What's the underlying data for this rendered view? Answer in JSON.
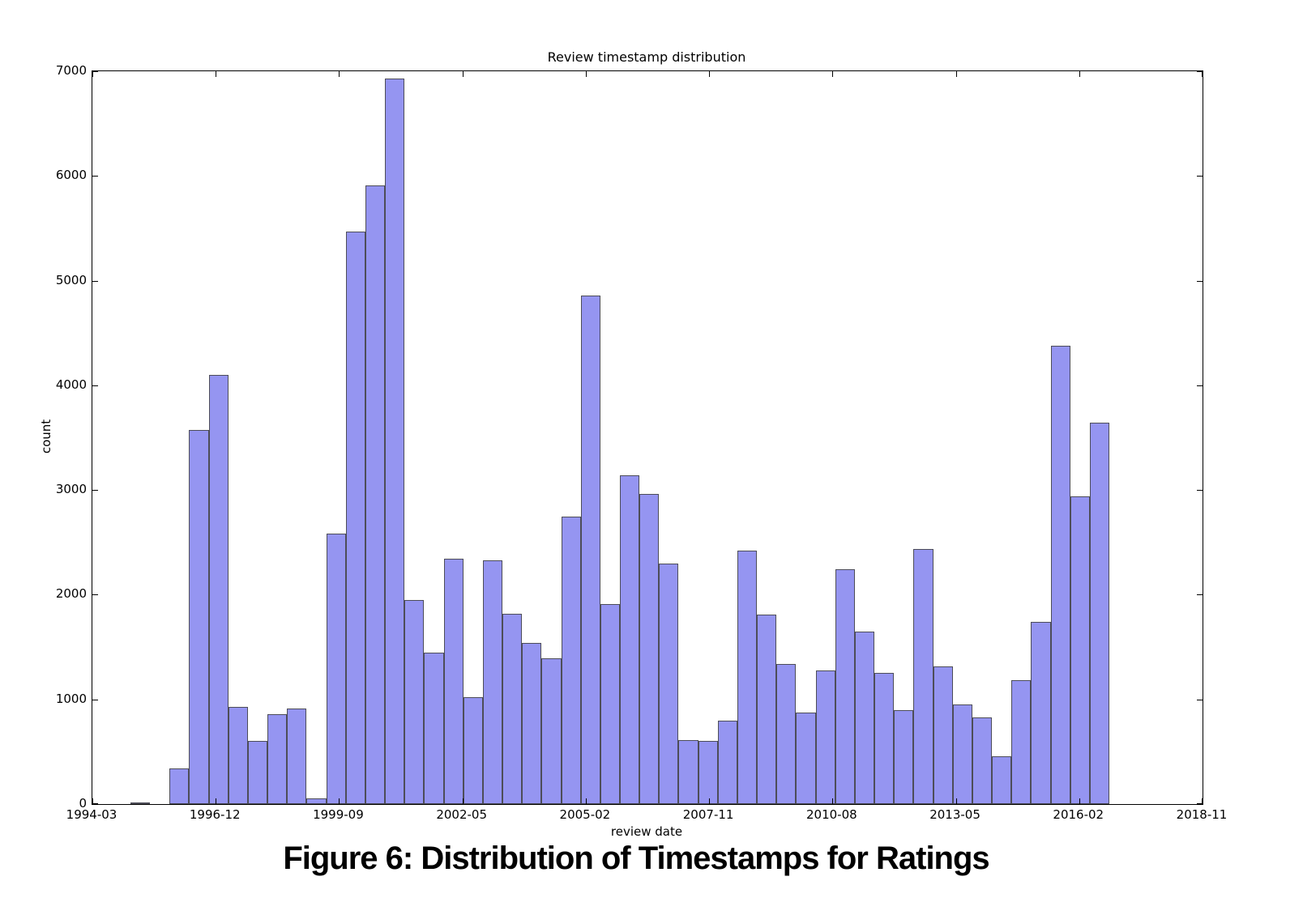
{
  "figure": {
    "caption": "Figure 6: Distribution of Timestamps for Ratings"
  },
  "chart_data": {
    "type": "bar",
    "subtype": "histogram",
    "title": "Review timestamp distribution",
    "xlabel": "review date",
    "ylabel": "count",
    "x_tick_labels": [
      "1994-03",
      "1996-12",
      "1999-09",
      "2002-05",
      "2005-02",
      "2007-11",
      "2010-08",
      "2013-05",
      "2016-02",
      "2018-11"
    ],
    "y_ticks": [
      0,
      1000,
      2000,
      3000,
      4000,
      5000,
      6000,
      7000
    ],
    "ylim": [
      0,
      7000
    ],
    "n_bins": 50,
    "values": [
      15,
      0,
      340,
      3575,
      4100,
      930,
      600,
      855,
      910,
      55,
      2580,
      5465,
      5910,
      6930,
      1950,
      1450,
      2345,
      1020,
      2330,
      1815,
      1540,
      1390,
      2745,
      4855,
      1910,
      3140,
      2960,
      2295,
      610,
      600,
      800,
      2420,
      1810,
      1335,
      875,
      1280,
      2240,
      1650,
      1255,
      900,
      2440,
      1315,
      955,
      830,
      455,
      1185,
      1740,
      4380,
      2940,
      3645
    ],
    "layout": {
      "grid": false,
      "legend": false,
      "tick_direction": "in",
      "bar_area_left_frac": 0.0343,
      "bin_width_frac": 0.017635
    },
    "colors": {
      "bar_fill": "#9595f1",
      "bar_edge": "#4d4d58",
      "axis": "#000000",
      "text": "#000000",
      "background": "#ffffff"
    }
  }
}
